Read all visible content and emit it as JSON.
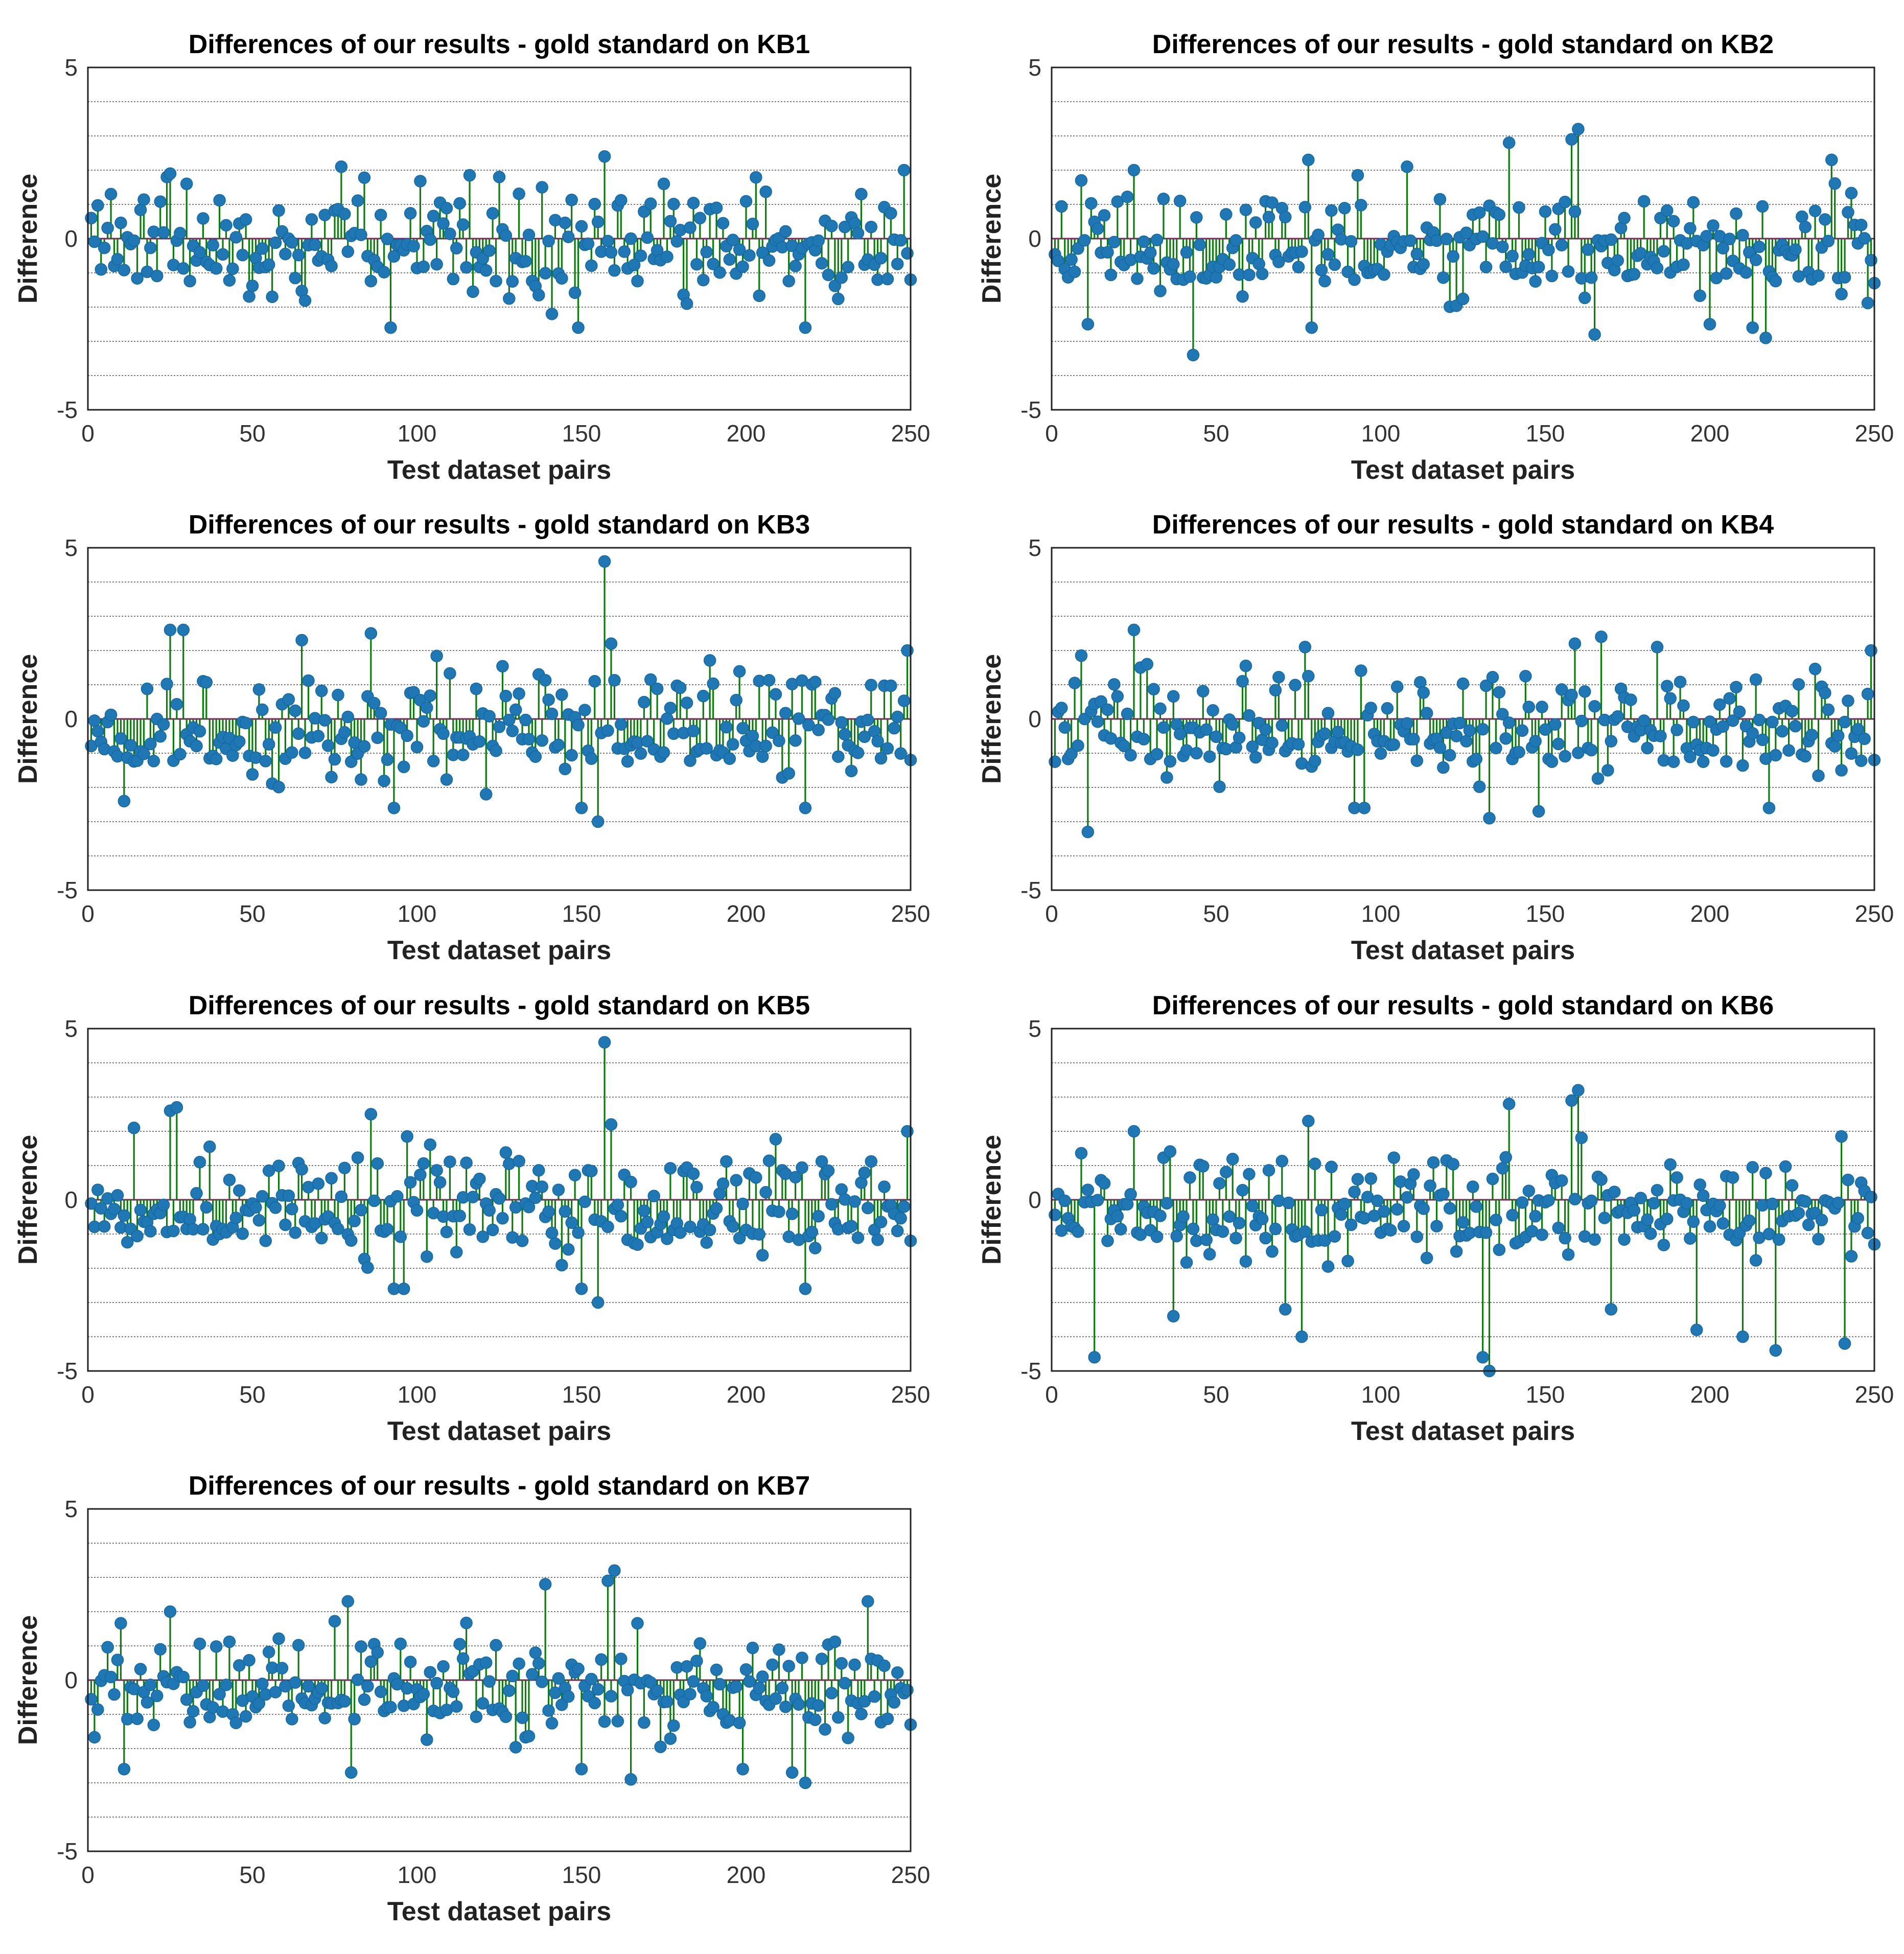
{
  "figure": {
    "n_points": 250,
    "series_colors": {
      "stem": "#0A7D0A",
      "marker": "#1F77B4",
      "baseline": "#8B1A6B",
      "grid": "#7a7a7a"
    }
  },
  "chart_data": [
    {
      "type": "stem",
      "title": "Differences of our results - gold standard on KB1",
      "xlabel": "Test dataset pairs",
      "ylabel": "Difference",
      "xlim": [
        0,
        250
      ],
      "ylim": [
        -5,
        5
      ],
      "xticks": [
        "0",
        "50",
        "100",
        "150",
        "200",
        "250"
      ],
      "yticks": [
        "5",
        "0",
        "-5"
      ],
      "grid_y": [
        -4,
        -3,
        -2,
        -1,
        1,
        2,
        3,
        4
      ],
      "seed": 11,
      "highlights": [
        [
          1,
          0.6
        ],
        [
          7,
          1.3
        ],
        [
          24,
          1.8
        ],
        [
          25,
          1.9
        ],
        [
          30,
          1.6
        ],
        [
          77,
          2.1
        ],
        [
          92,
          -2.6
        ],
        [
          125,
          1.8
        ],
        [
          138,
          1.5
        ],
        [
          141,
          -2.2
        ],
        [
          149,
          -2.6
        ],
        [
          157,
          2.4
        ],
        [
          175,
          1.6
        ],
        [
          218,
          -2.6
        ],
        [
          235,
          1.3
        ],
        [
          248,
          2.0
        ],
        [
          250,
          -1.2
        ]
      ]
    },
    {
      "type": "stem",
      "title": "Differences of our results - gold standard on KB2",
      "xlabel": "Test dataset pairs",
      "ylabel": "Difference",
      "xlim": [
        0,
        250
      ],
      "ylim": [
        -5,
        5
      ],
      "xticks": [
        "0",
        "50",
        "100",
        "150",
        "200",
        "250"
      ],
      "yticks": [
        "5",
        "0",
        "-5"
      ],
      "grid_y": [
        -4,
        -3,
        -2,
        -1,
        1,
        2,
        3,
        4
      ],
      "seed": 23,
      "highlights": [
        [
          9,
          1.7
        ],
        [
          11,
          -2.5
        ],
        [
          25,
          2.0
        ],
        [
          43,
          -3.4
        ],
        [
          78,
          2.3
        ],
        [
          79,
          -2.6
        ],
        [
          108,
          2.1
        ],
        [
          139,
          2.8
        ],
        [
          158,
          2.9
        ],
        [
          160,
          3.2
        ],
        [
          165,
          -2.8
        ],
        [
          200,
          -2.5
        ],
        [
          213,
          -2.6
        ],
        [
          217,
          -2.9
        ],
        [
          237,
          2.3
        ],
        [
          250,
          -1.3
        ]
      ]
    },
    {
      "type": "stem",
      "title": "Differences of our results - gold standard on KB3",
      "xlabel": "Test dataset pairs",
      "ylabel": "Difference",
      "xlim": [
        0,
        250
      ],
      "ylim": [
        -5,
        5
      ],
      "xticks": [
        "0",
        "50",
        "100",
        "150",
        "200",
        "250"
      ],
      "yticks": [
        "5",
        "0",
        "-5"
      ],
      "grid_y": [
        -4,
        -3,
        -2,
        -1,
        1,
        2,
        3,
        4
      ],
      "seed": 37,
      "highlights": [
        [
          11,
          -2.4
        ],
        [
          25,
          2.6
        ],
        [
          29,
          2.6
        ],
        [
          65,
          2.3
        ],
        [
          86,
          2.5
        ],
        [
          93,
          -2.6
        ],
        [
          121,
          -2.2
        ],
        [
          150,
          -2.6
        ],
        [
          155,
          -3.0
        ],
        [
          157,
          4.6
        ],
        [
          159,
          2.2
        ],
        [
          218,
          -2.6
        ],
        [
          249,
          2.0
        ],
        [
          250,
          -1.2
        ]
      ]
    },
    {
      "type": "stem",
      "title": "Differences of our results - gold standard on KB4",
      "xlabel": "Test dataset pairs",
      "ylabel": "Difference",
      "xlim": [
        0,
        250
      ],
      "ylim": [
        -5,
        5
      ],
      "xticks": [
        "0",
        "50",
        "100",
        "150",
        "200",
        "250"
      ],
      "yticks": [
        "5",
        "0",
        "-5"
      ],
      "grid_y": [
        -4,
        -3,
        -2,
        -1,
        1,
        2,
        3,
        4
      ],
      "seed": 41,
      "highlights": [
        [
          11,
          -3.3
        ],
        [
          25,
          2.6
        ],
        [
          77,
          2.1
        ],
        [
          92,
          -2.6
        ],
        [
          95,
          -2.6
        ],
        [
          133,
          -2.9
        ],
        [
          148,
          -2.7
        ],
        [
          159,
          2.2
        ],
        [
          167,
          2.4
        ],
        [
          184,
          2.1
        ],
        [
          218,
          -2.6
        ],
        [
          249,
          2.0
        ],
        [
          250,
          -1.2
        ]
      ]
    },
    {
      "type": "stem",
      "title": "Differences of our results - gold standard on KB5",
      "xlabel": "Test dataset pairs",
      "ylabel": "Difference",
      "xlim": [
        0,
        250
      ],
      "ylim": [
        -5,
        5
      ],
      "xticks": [
        "0",
        "50",
        "100",
        "150",
        "200",
        "250"
      ],
      "yticks": [
        "5",
        "0",
        "-5"
      ],
      "grid_y": [
        -4,
        -3,
        -2,
        -1,
        1,
        2,
        3,
        4
      ],
      "seed": 53,
      "highlights": [
        [
          14,
          2.1
        ],
        [
          25,
          2.6
        ],
        [
          27,
          2.7
        ],
        [
          86,
          2.5
        ],
        [
          93,
          -2.6
        ],
        [
          96,
          -2.6
        ],
        [
          150,
          -2.6
        ],
        [
          155,
          -3.0
        ],
        [
          157,
          4.6
        ],
        [
          159,
          2.2
        ],
        [
          218,
          -2.6
        ],
        [
          249,
          2.0
        ],
        [
          250,
          -1.2
        ]
      ]
    },
    {
      "type": "stem",
      "title": "Differences of our results - gold standard on KB6",
      "xlabel": "Test dataset pairs",
      "ylabel": "Difference",
      "xlim": [
        0,
        250
      ],
      "ylim": [
        -5,
        5
      ],
      "xticks": [
        "0",
        "50",
        "100",
        "150",
        "200",
        "250"
      ],
      "yticks": [
        "5",
        "0",
        "-5"
      ],
      "grid_y": [
        -4,
        -3,
        -2,
        -1,
        1,
        2,
        3,
        4
      ],
      "seed": 67,
      "highlights": [
        [
          13,
          -4.6
        ],
        [
          25,
          2.0
        ],
        [
          37,
          -3.4
        ],
        [
          71,
          -3.2
        ],
        [
          76,
          -4.0
        ],
        [
          78,
          2.3
        ],
        [
          131,
          -4.6
        ],
        [
          133,
          -5.0
        ],
        [
          139,
          2.8
        ],
        [
          158,
          2.9
        ],
        [
          160,
          3.2
        ],
        [
          170,
          -3.2
        ],
        [
          196,
          -3.8
        ],
        [
          210,
          -4.0
        ],
        [
          220,
          -4.4
        ],
        [
          241,
          -4.2
        ],
        [
          250,
          -1.3
        ]
      ]
    },
    {
      "type": "stem",
      "title": "Differences of our results - gold standard on KB7",
      "xlabel": "Test dataset pairs",
      "ylabel": "Difference",
      "xlim": [
        0,
        250
      ],
      "ylim": [
        -5,
        5
      ],
      "xticks": [
        "0",
        "50",
        "100",
        "150",
        "200",
        "250"
      ],
      "yticks": [
        "5",
        "0",
        "-5"
      ],
      "grid_y": [
        -4,
        -3,
        -2,
        -1,
        1,
        2,
        3,
        4
      ],
      "seed": 79,
      "highlights": [
        [
          11,
          -2.6
        ],
        [
          25,
          2.0
        ],
        [
          79,
          2.3
        ],
        [
          80,
          -2.7
        ],
        [
          139,
          2.8
        ],
        [
          150,
          -2.6
        ],
        [
          158,
          2.9
        ],
        [
          160,
          3.2
        ],
        [
          165,
          -2.9
        ],
        [
          199,
          -2.6
        ],
        [
          214,
          -2.7
        ],
        [
          218,
          -3.0
        ],
        [
          237,
          2.3
        ],
        [
          250,
          -1.3
        ]
      ]
    }
  ]
}
